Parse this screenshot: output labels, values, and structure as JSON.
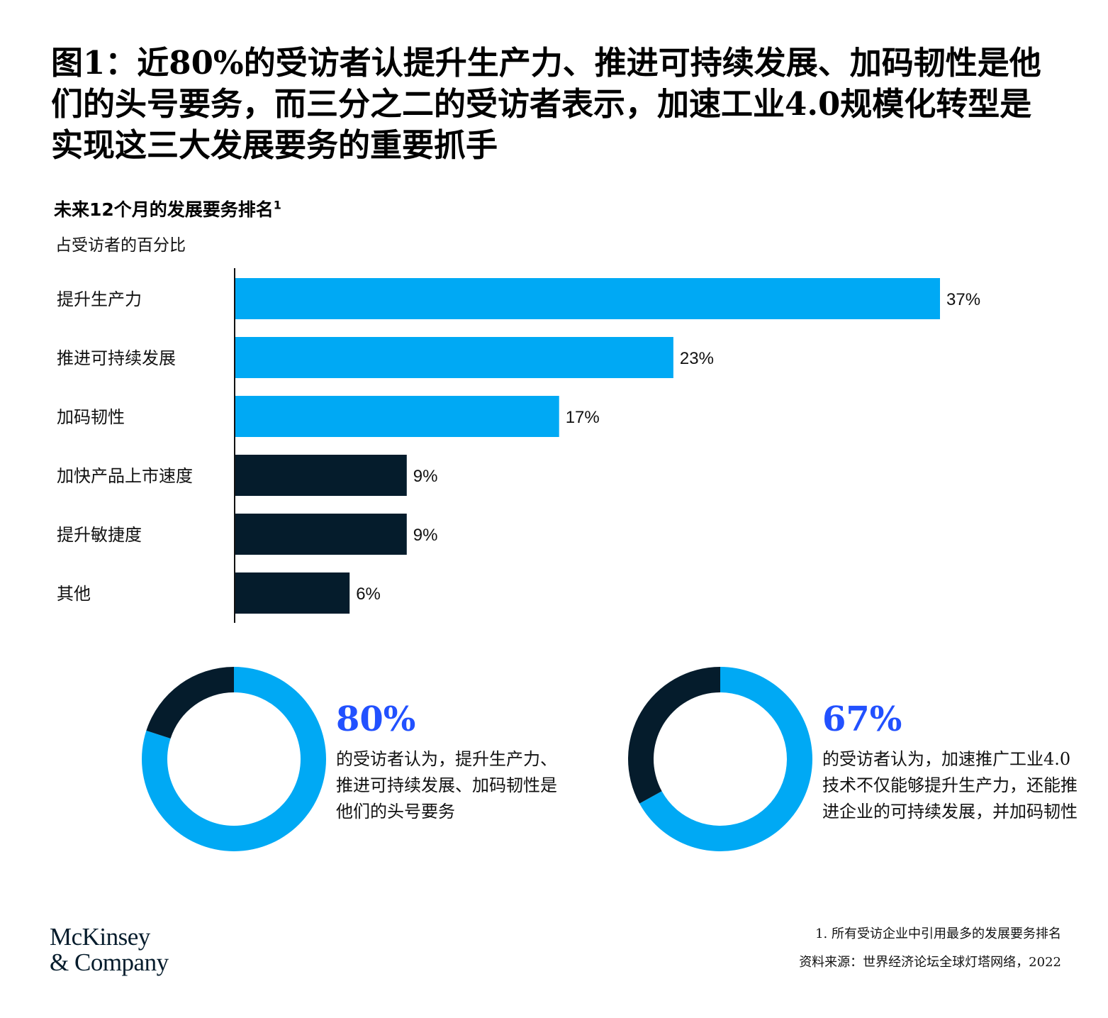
{
  "title": "图1：近80%的受访者认提升生产力、推进可持续发展、加码韧性是他们的头号要务，而三分之二的受访者表示，加速工业4.0规模化转型是实现这三大发展要务的重要抓手",
  "subtitle": "未来12个月的发展要务排名",
  "subtitle_footnote_mark": "1",
  "unit_label": "占受访者的百分比",
  "colors": {
    "light_blue": "#00a9f4",
    "dark_navy": "#051c2c",
    "accent_blue": "#2251ff"
  },
  "chart_data": [
    {
      "type": "bar",
      "orientation": "horizontal",
      "title": "未来12个月的发展要务排名",
      "unit": "占受访者的百分比",
      "categories": [
        "提升生产力",
        "推进可持续发展",
        "加码韧性",
        "加快产品上市速度",
        "提升敏捷度",
        "其他"
      ],
      "values": [
        37,
        23,
        17,
        9,
        9,
        6
      ],
      "value_labels": [
        "37%",
        "23%",
        "17%",
        "9%",
        "9%",
        "6%"
      ],
      "bar_colors": [
        "#00a9f4",
        "#00a9f4",
        "#00a9f4",
        "#051c2c",
        "#051c2c",
        "#051c2c"
      ],
      "xlim": [
        0,
        37
      ],
      "grid": false
    },
    {
      "type": "pie",
      "style": "donut",
      "values": [
        80,
        20
      ],
      "colors": [
        "#00a9f4",
        "#051c2c"
      ]
    },
    {
      "type": "pie",
      "style": "donut",
      "values": [
        67,
        33
      ],
      "colors": [
        "#00a9f4",
        "#051c2c"
      ]
    }
  ],
  "callouts": [
    {
      "value": "80%",
      "text": "的受访者认为，提升生产力、推进可持续发展、加码韧性是他们的头号要务"
    },
    {
      "value": "67%",
      "text": "的受访者认为，加速推广工业4.0技术不仅能够提升生产力，还能推进企业的可持续发展，并加码韧性"
    }
  ],
  "logo": {
    "line1": "McKinsey",
    "line2": "& Company"
  },
  "footnotes": {
    "note1": "1. 所有受访企业中引用最多的发展要务排名",
    "source": "资料来源：世界经济论坛全球灯塔网络，2022"
  }
}
